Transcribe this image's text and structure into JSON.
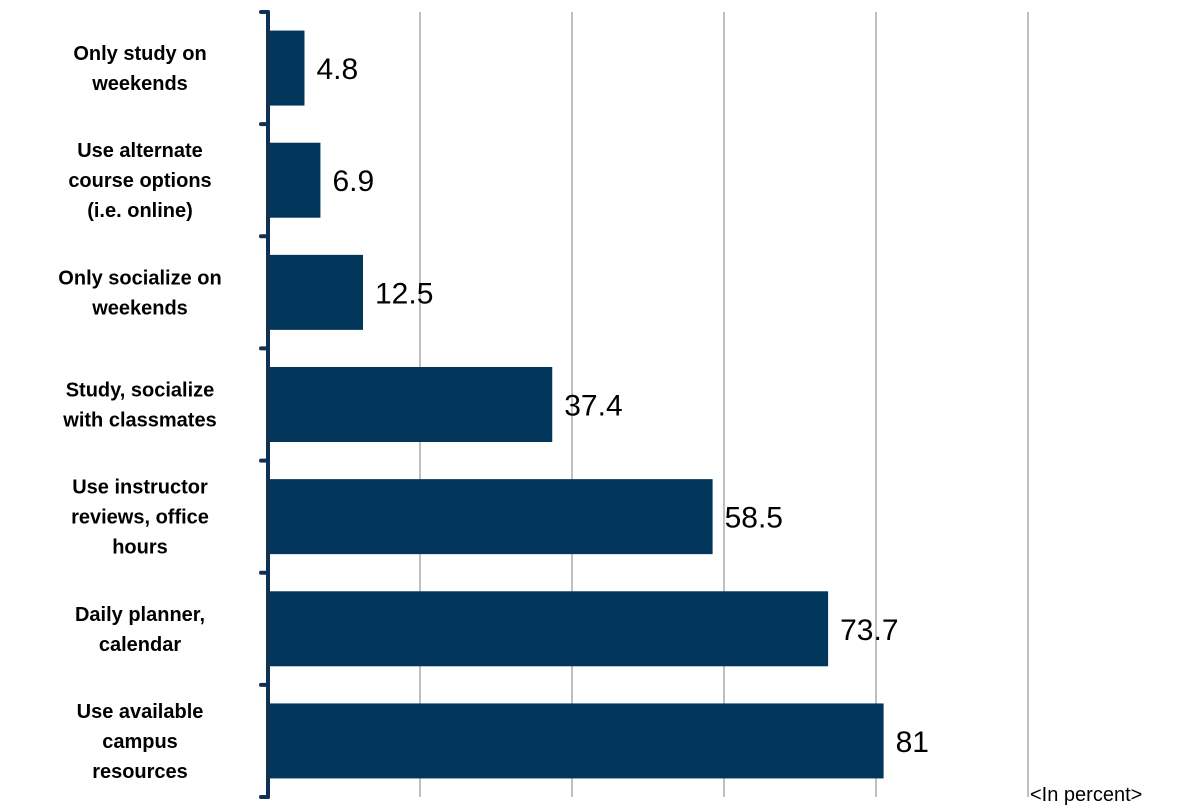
{
  "chart_data": {
    "type": "bar",
    "orientation": "horizontal",
    "categories": [
      "Only study on weekends",
      "Use alternate course options (i.e. online)",
      "Only socialize on weekends",
      "Study, socialize with classmates",
      "Use instructor reviews, office hours",
      "Daily planner, calendar",
      "Use available campus resources"
    ],
    "category_lines": [
      [
        "Only study on",
        "weekends"
      ],
      [
        "Use alternate",
        "course options",
        "(i.e. online)"
      ],
      [
        "Only socialize on",
        "weekends"
      ],
      [
        "Study, socialize",
        "with classmates"
      ],
      [
        "Use instructor",
        "reviews, office",
        "hours"
      ],
      [
        "Daily planner,",
        "calendar"
      ],
      [
        "Use available",
        "campus",
        "resources"
      ]
    ],
    "values": [
      4.8,
      6.9,
      12.5,
      37.4,
      58.5,
      73.7,
      81
    ],
    "value_labels": [
      "4.8",
      "6.9",
      "12.5",
      "37.4",
      "58.5",
      "73.7",
      "81"
    ],
    "unit_note": "<In percent>",
    "xlim": [
      0,
      100
    ],
    "grid": true,
    "bar_color": "#02365a",
    "axis_color": "#0f3253",
    "grid_color": "#c0c0c0"
  }
}
